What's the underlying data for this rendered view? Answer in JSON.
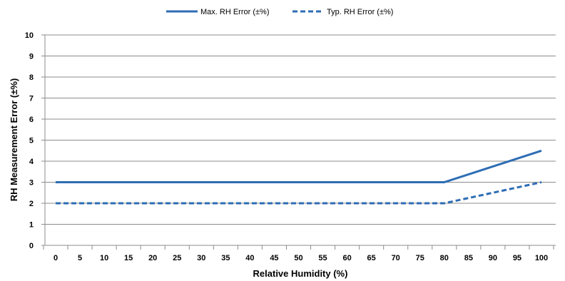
{
  "chart_data": {
    "type": "line",
    "title": "",
    "xlabel": "Relative Humidity (%)",
    "ylabel": "RH Measurement Error (±%)",
    "xlim": [
      0,
      100
    ],
    "ylim": [
      0,
      10
    ],
    "x_ticks": [
      "0",
      "5",
      "10",
      "15",
      "20",
      "25",
      "30",
      "35",
      "40",
      "45",
      "50",
      "55",
      "60",
      "65",
      "70",
      "75",
      "80",
      "85",
      "90",
      "95",
      "100"
    ],
    "y_ticks": [
      "0",
      "1",
      "2",
      "3",
      "4",
      "5",
      "6",
      "7",
      "8",
      "9",
      "10"
    ],
    "grid": "horizontal",
    "legend_position": "top",
    "series": [
      {
        "name": "Max. RH Error (±%)",
        "style": "solid",
        "color": "#2E6DB4",
        "x": [
          0,
          80,
          100
        ],
        "y": [
          3,
          3,
          4.5
        ]
      },
      {
        "name": "Typ. RH Error (±%)",
        "style": "dashed",
        "color": "#2E6DB4",
        "x": [
          0,
          80,
          100
        ],
        "y": [
          2,
          2,
          3
        ]
      }
    ]
  }
}
